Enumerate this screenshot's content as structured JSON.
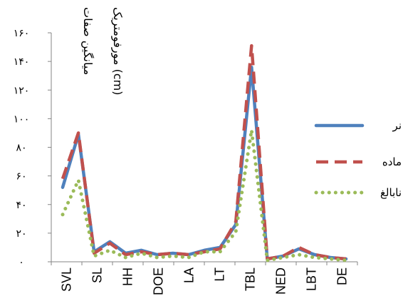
{
  "chart_data": {
    "type": "line",
    "title": "",
    "xlabel": "",
    "ylabel_lines": [
      "میانگین صفات",
      "مورفومتریک (cm)"
    ],
    "ylim": [
      0,
      160
    ],
    "yticks": [
      {
        "value": 0,
        "label": "۰"
      },
      {
        "value": 20,
        "label": "۲۰"
      },
      {
        "value": 40,
        "label": "۴۰"
      },
      {
        "value": 60,
        "label": "۶۰"
      },
      {
        "value": 80,
        "label": "۸۰"
      },
      {
        "value": 100,
        "label": "۱۰۰"
      },
      {
        "value": 120,
        "label": "۱۲۰"
      },
      {
        "value": 140,
        "label": "۱۴۰"
      },
      {
        "value": 160,
        "label": "۱۶۰"
      }
    ],
    "x_tick_labels": [
      "SVL",
      "SL",
      "HH",
      "DOE",
      "LA",
      "LT",
      "TBL",
      "NED",
      "LBT",
      "DE"
    ],
    "grid": false,
    "legend_position": "right",
    "series": [
      {
        "name": "نر",
        "color": "#4F81BD",
        "dash": "solid",
        "values": [
          52,
          89,
          7,
          14,
          6,
          8,
          5,
          6,
          5,
          8,
          10,
          26,
          136,
          2,
          4,
          9,
          5,
          3,
          2
        ]
      },
      {
        "name": "ماده",
        "color": "#C0504D",
        "dash": "dashed",
        "values": [
          58,
          90,
          6,
          13,
          5,
          7,
          5,
          6,
          5,
          7,
          9,
          28,
          151,
          2,
          4,
          10,
          5,
          3,
          2
        ]
      },
      {
        "name": "نابالغ",
        "color": "#9BBB59",
        "dash": "dotted",
        "values": [
          33,
          57,
          4,
          8,
          3,
          6,
          3,
          4,
          3,
          7,
          7,
          21,
          92,
          1,
          3,
          5,
          3,
          2,
          1
        ]
      }
    ]
  }
}
